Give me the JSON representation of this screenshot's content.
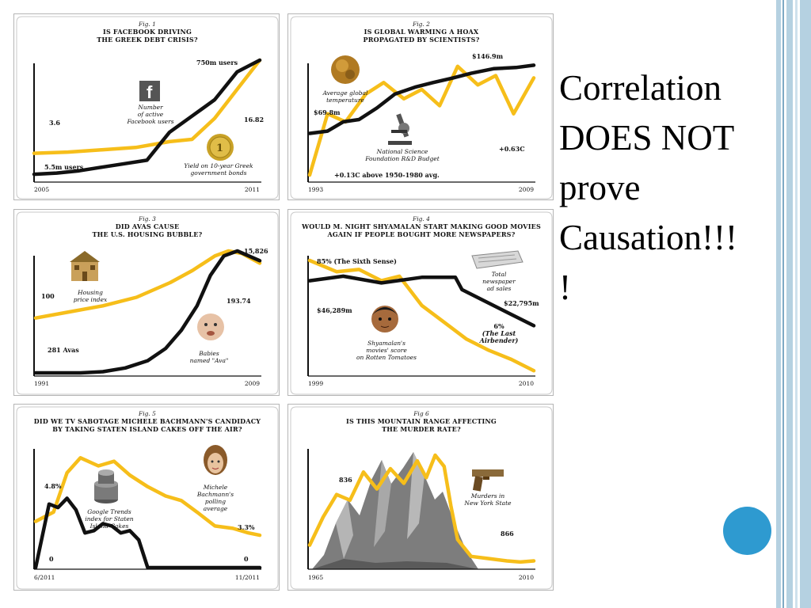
{
  "slide": {
    "heading_lines": [
      "Correlation",
      "DOES NOT",
      "prove",
      "Causation!!!",
      "!"
    ],
    "accent_colors": {
      "stripe": "#b5d1e1",
      "stripe_dark": "#7fa9c4",
      "circle": "#2e9ad0"
    }
  },
  "colors": {
    "yellow": "#f6be1a",
    "black": "#111111",
    "mountain": "#7d7d7d"
  },
  "chart_data": [
    {
      "type": "line",
      "fig": "Fig. 1",
      "title": [
        "IS FACEBOOK DRIVING",
        "THE GREEK DEBT CRISIS?"
      ],
      "x_start": "2005",
      "x_end": "2011",
      "series": [
        {
          "name": "Number of active Facebook users",
          "color": "#111111",
          "x": [
            0,
            0.1,
            0.2,
            0.3,
            0.4,
            0.5,
            0.6,
            0.7,
            0.8,
            0.9,
            1.0
          ],
          "values": [
            0.02,
            0.03,
            0.05,
            0.08,
            0.11,
            0.14,
            0.38,
            0.52,
            0.66,
            0.9,
            1.0
          ]
        },
        {
          "name": "Yield on 10-year Greek government bonds",
          "color": "#f6be1a",
          "x": [
            0,
            0.15,
            0.3,
            0.45,
            0.6,
            0.7,
            0.8,
            0.9,
            1.0
          ],
          "values": [
            0.2,
            0.21,
            0.23,
            0.25,
            0.3,
            0.32,
            0.5,
            0.75,
            1.0
          ]
        }
      ],
      "annotations": [
        {
          "text": "750m users"
        },
        {
          "text": "3.6"
        },
        {
          "text": "16.82"
        },
        {
          "text": "5.5m users"
        }
      ],
      "legend": [
        [
          "Number",
          "of active",
          "Facebook users"
        ],
        [
          "Yield on 10-year Greek",
          "government bonds"
        ]
      ],
      "icons": [
        "facebook-logo-icon",
        "coin-icon"
      ]
    },
    {
      "type": "line",
      "fig": "Fig. 2",
      "title": [
        "IS GLOBAL WARMING A HOAX",
        "PROPAGATED BY SCIENTISTS?"
      ],
      "x_start": "1993",
      "x_end": "2009",
      "series": [
        {
          "name": "National Science Foundation R&D Budget",
          "color": "#111111",
          "x": [
            0,
            0.08,
            0.15,
            0.22,
            0.3,
            0.38,
            0.47,
            0.55,
            0.64,
            0.72,
            0.82,
            0.92,
            1.0
          ],
          "values": [
            0.38,
            0.4,
            0.48,
            0.5,
            0.6,
            0.72,
            0.78,
            0.82,
            0.86,
            0.9,
            0.94,
            0.95,
            0.97
          ]
        },
        {
          "name": "Average global temperature",
          "color": "#f6be1a",
          "x": [
            0,
            0.08,
            0.16,
            0.25,
            0.33,
            0.42,
            0.5,
            0.58,
            0.66,
            0.75,
            0.83,
            0.91,
            1.0
          ],
          "values": [
            0.02,
            0.55,
            0.48,
            0.72,
            0.82,
            0.68,
            0.76,
            0.62,
            0.96,
            0.8,
            0.88,
            0.55,
            0.86
          ]
        }
      ],
      "annotations": [
        {
          "text": "$146.9m"
        },
        {
          "text": "$69.8m"
        },
        {
          "text": "+0.63C"
        },
        {
          "text": "+0.13C above 1950-1980 avg."
        }
      ],
      "legend": [
        [
          "Average global",
          "temperature"
        ],
        [
          "National Science",
          "Foundation R&D Budget"
        ]
      ],
      "icons": [
        "globe-icon",
        "microscope-icon"
      ]
    },
    {
      "type": "line",
      "fig": "Fig. 3",
      "title": [
        "DID AVAS CAUSE",
        "THE U.S. HOUSING BUBBLE?"
      ],
      "x_start": "1991",
      "x_end": "2009",
      "series": [
        {
          "name": "Babies named \"Ava\"",
          "color": "#111111",
          "x": [
            0,
            0.1,
            0.2,
            0.3,
            0.4,
            0.5,
            0.58,
            0.65,
            0.72,
            0.78,
            0.84,
            0.9,
            1.0
          ],
          "values": [
            0.0,
            0.0,
            0.0,
            0.01,
            0.04,
            0.1,
            0.2,
            0.35,
            0.55,
            0.8,
            0.96,
            1.0,
            0.92
          ]
        },
        {
          "name": "Housing price index",
          "color": "#f6be1a",
          "x": [
            0,
            0.15,
            0.3,
            0.45,
            0.6,
            0.7,
            0.8,
            0.86,
            0.92,
            1.0
          ],
          "values": [
            0.45,
            0.5,
            0.55,
            0.62,
            0.74,
            0.84,
            0.96,
            1.0,
            0.98,
            0.9
          ]
        }
      ],
      "annotations": [
        {
          "text": "15,826"
        },
        {
          "text": "100"
        },
        {
          "text": "193.74"
        },
        {
          "text": "281 Avas"
        }
      ],
      "legend": [
        [
          "Housing",
          "price index"
        ],
        [
          "Babies",
          "named \"Ava\""
        ]
      ],
      "icons": [
        "house-icon",
        "baby-icon"
      ]
    },
    {
      "type": "line",
      "fig": "Fig. 4",
      "title": [
        "WOULD M. NIGHT SHYAMALAN START MAKING GOOD MOVIES",
        "AGAIN IF PEOPLE BOUGHT MORE NEWSPAPERS?"
      ],
      "x_start": "1999",
      "x_end": "2010",
      "series": [
        {
          "name": "Total newspaper ad sales",
          "color": "#111111",
          "x": [
            0,
            0.15,
            0.32,
            0.5,
            0.65,
            0.68,
            0.8,
            0.9,
            1.0
          ],
          "values": [
            0.82,
            0.86,
            0.8,
            0.85,
            0.85,
            0.74,
            0.62,
            0.52,
            0.42
          ]
        },
        {
          "name": "Shyamalan's movies' score on Rotten Tomatoes",
          "color": "#f6be1a",
          "x": [
            0,
            0.12,
            0.22,
            0.32,
            0.4,
            0.5,
            0.6,
            0.7,
            0.8,
            0.9,
            1.0
          ],
          "values": [
            1.0,
            0.9,
            0.92,
            0.82,
            0.86,
            0.6,
            0.45,
            0.3,
            0.2,
            0.12,
            0.02
          ]
        }
      ],
      "annotations": [
        {
          "text": "85% (The Sixth Sense)"
        },
        {
          "text": "$46,289m"
        },
        {
          "text": "$22,795m"
        },
        {
          "text": "6%"
        },
        {
          "text": "(The Last"
        },
        {
          "text": "Airbender)"
        }
      ],
      "legend": [
        [
          "Total",
          "newspaper",
          "ad sales"
        ],
        [
          "Shyamalan's",
          "movies' score",
          "on Rotten Tomatoes"
        ]
      ],
      "icons": [
        "newspaper-icon",
        "face-icon"
      ]
    },
    {
      "type": "line",
      "fig": "Fig. 5",
      "title": [
        "DID WE TV SABOTAGE MICHELE BACHMANN'S CANDIDACY",
        "BY TAKING STATEN ISLAND CAKES OFF THE AIR?"
      ],
      "x_start": "6/2011",
      "x_end": "11/2011",
      "series": [
        {
          "name": "Google Trends index for Staten Island Cakes",
          "color": "#111111",
          "x": [
            0,
            0.06,
            0.1,
            0.14,
            0.18,
            0.22,
            0.26,
            0.3,
            0.34,
            0.38,
            0.42,
            0.46,
            0.5,
            0.54,
            0.56,
            0.6,
            0.7,
            0.8,
            0.9,
            1.0
          ],
          "values": [
            0.0,
            0.55,
            0.52,
            0.6,
            0.5,
            0.3,
            0.32,
            0.38,
            0.36,
            0.3,
            0.32,
            0.24,
            0.0,
            0.0,
            0.0,
            0.0,
            0.0,
            0.0,
            0.0,
            0.0
          ]
        },
        {
          "name": "Michele Bachmann's polling average",
          "color": "#f6be1a",
          "x": [
            0,
            0.08,
            0.14,
            0.2,
            0.28,
            0.35,
            0.42,
            0.5,
            0.58,
            0.65,
            0.72,
            0.8,
            0.88,
            0.95,
            1.0
          ],
          "values": [
            0.4,
            0.48,
            0.82,
            0.95,
            0.88,
            0.92,
            0.8,
            0.7,
            0.62,
            0.58,
            0.48,
            0.36,
            0.34,
            0.3,
            0.28
          ]
        }
      ],
      "annotations": [
        {
          "text": "4.8%"
        },
        {
          "text": "3.3%"
        },
        {
          "text": "0"
        },
        {
          "text": "0"
        }
      ],
      "legend": [
        [
          "Google Trends",
          "index for Staten",
          "Island Cakes"
        ],
        [
          "Michele",
          "Bachmann's",
          "polling",
          "average"
        ]
      ],
      "icons": [
        "cake-icon",
        "woman-portrait-icon"
      ]
    },
    {
      "type": "line",
      "fig": "Fig 6",
      "title": [
        "IS THIS MOUNTAIN RANGE AFFECTING",
        "THE MURDER RATE?"
      ],
      "x_start": "1965",
      "x_end": "2010",
      "series": [
        {
          "name": "Murders in New York State",
          "color": "#f6be1a",
          "x": [
            0,
            0.06,
            0.12,
            0.18,
            0.24,
            0.3,
            0.36,
            0.42,
            0.48,
            0.52,
            0.56,
            0.6,
            0.63,
            0.66,
            0.72,
            0.8,
            0.88,
            0.94,
            1.0
          ],
          "values": [
            0.2,
            0.45,
            0.65,
            0.6,
            0.85,
            0.7,
            0.88,
            0.75,
            0.95,
            0.8,
            1.0,
            0.9,
            0.55,
            0.25,
            0.1,
            0.08,
            0.06,
            0.05,
            0.06
          ]
        }
      ],
      "annotations": [
        {
          "text": "836"
        },
        {
          "text": "866"
        }
      ],
      "legend": [
        [
          "Murders in",
          "New York State"
        ]
      ],
      "icons": [
        "mountain-range-icon",
        "gun-icon"
      ]
    }
  ]
}
